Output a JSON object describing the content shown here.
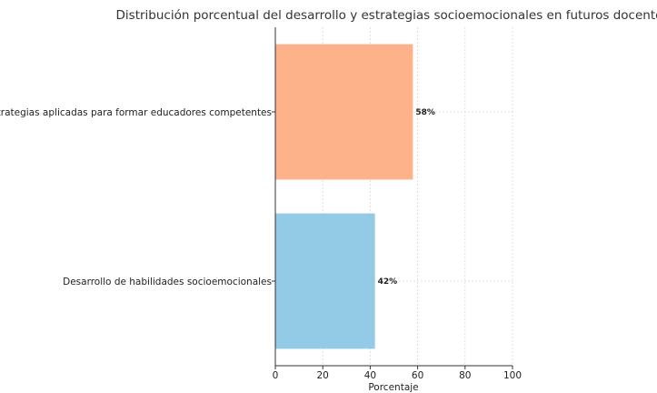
{
  "chart_data": {
    "type": "bar",
    "orientation": "horizontal",
    "title": "Distribución porcentual del desarrollo y estrategias socioemocionales en futuros docentes",
    "xlabel": "Porcentaje",
    "ylabel": "",
    "xlim": [
      0,
      100
    ],
    "xticks": [
      "0",
      "20",
      "40",
      "60",
      "80",
      "100"
    ],
    "categories": [
      "Desarrollo de habilidades socioemocionales",
      "Estrategias aplicadas para formar educadores competentes"
    ],
    "values": [
      42,
      58
    ],
    "data_labels": [
      "42%",
      "58%"
    ],
    "colors": [
      "#93cbe7",
      "#fdb28a"
    ],
    "grid": true,
    "legend": "none"
  }
}
